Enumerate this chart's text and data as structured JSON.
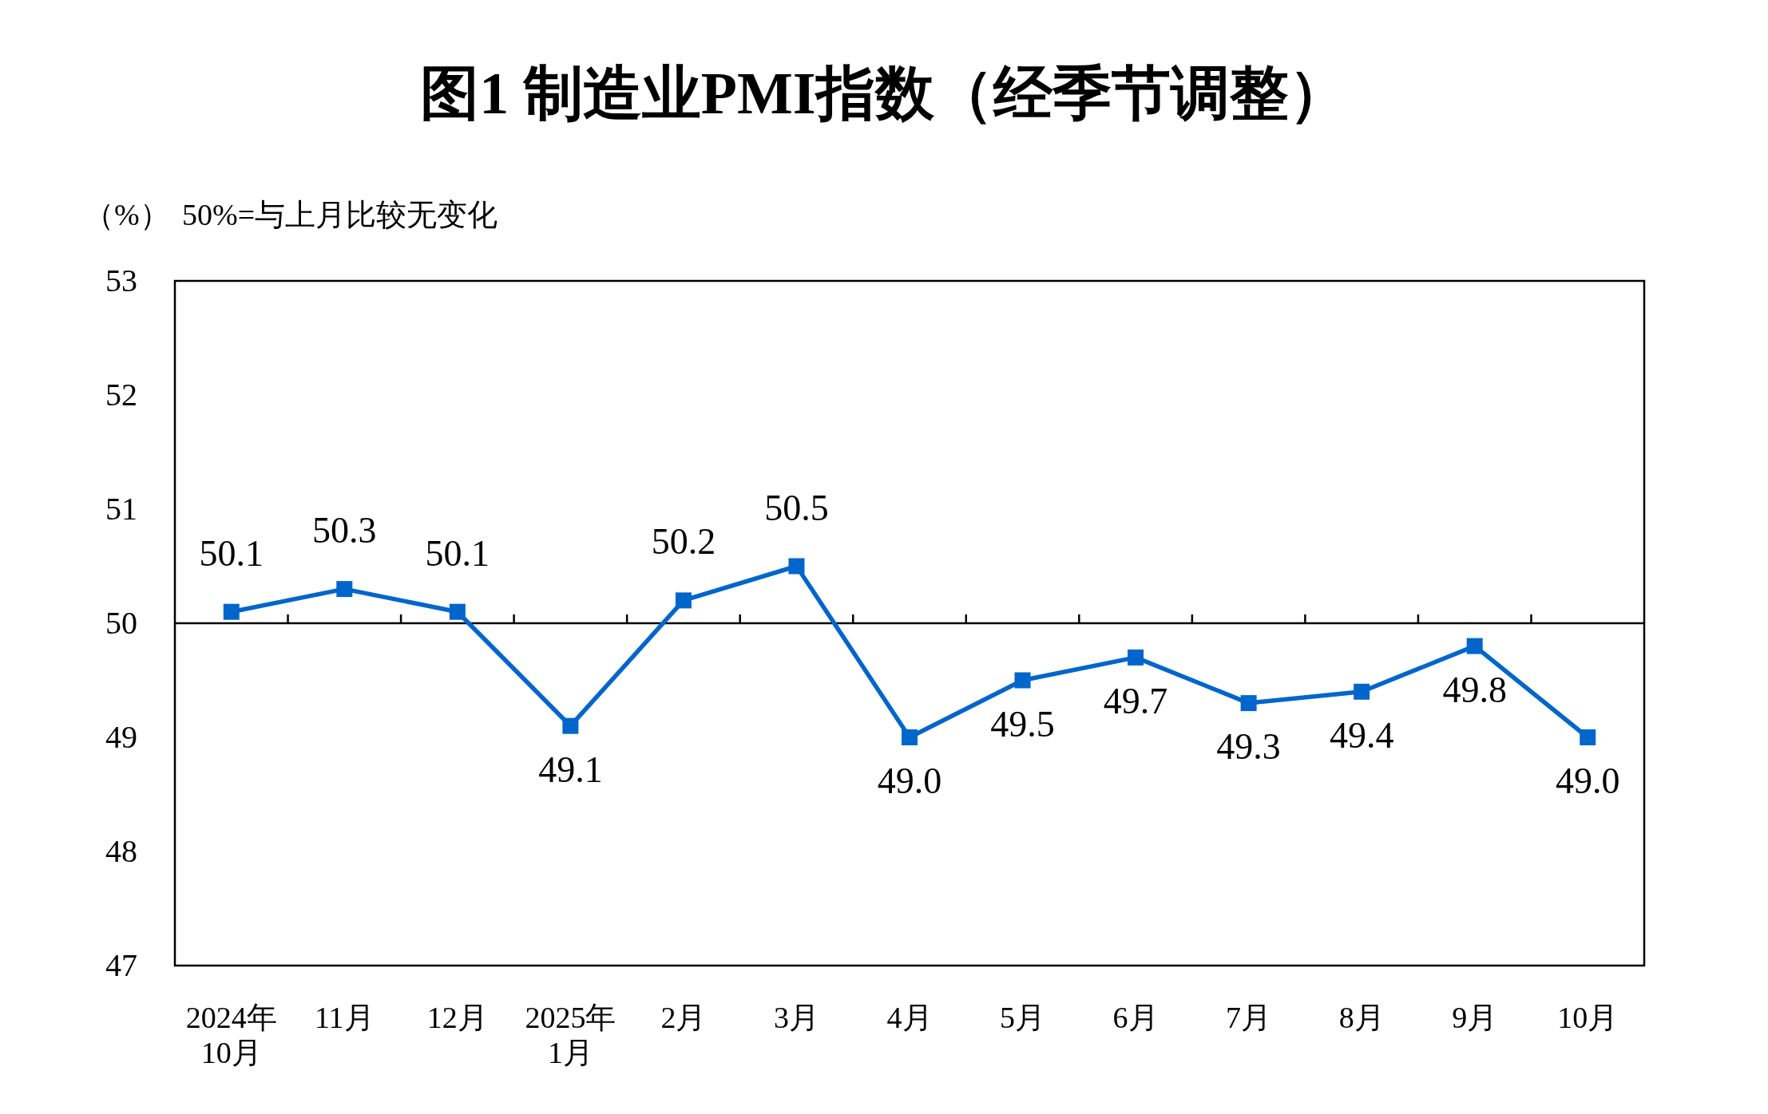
{
  "chart_data": {
    "type": "line",
    "title": "图1  制造业PMI指数（经季节调整）",
    "ylabel": "（%）",
    "annotations": [
      "50%=与上月比较无变化"
    ],
    "categories": [
      "2024年\n10月",
      "11月",
      "12月",
      "2025年\n1月",
      "2月",
      "3月",
      "4月",
      "5月",
      "6月",
      "7月",
      "8月",
      "9月",
      "10月"
    ],
    "series": [
      {
        "color": "#0066cc",
        "values": [
          50.1,
          50.3,
          50.1,
          49.1,
          50.2,
          50.5,
          49.0,
          49.5,
          49.7,
          49.3,
          49.4,
          49.8,
          49.0
        ],
        "value_labels": [
          "50.1",
          "50.3",
          "50.1",
          "49.1",
          "50.2",
          "50.5",
          "49.0",
          "49.5",
          "49.7",
          "49.3",
          "49.4",
          "49.8",
          "49.0"
        ]
      }
    ],
    "ylim": [
      47,
      53
    ],
    "yticks": [
      47,
      48,
      49,
      50,
      51,
      52,
      53
    ],
    "ref_lines": [
      {
        "axis": "y",
        "value": 50,
        "color": "#000000"
      }
    ],
    "marker": "square"
  }
}
